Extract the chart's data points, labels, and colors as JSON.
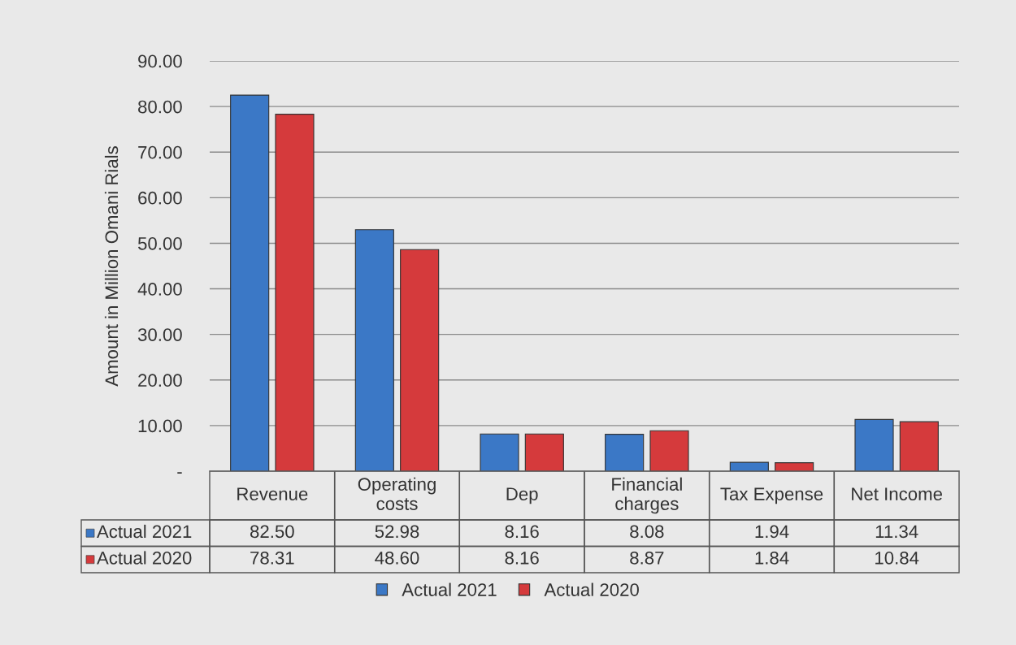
{
  "chart_data": {
    "type": "bar",
    "ylabel": "Amount in Million Omani Rials",
    "categories": [
      "Revenue",
      "Operating costs",
      "Dep",
      "Financial charges",
      "Tax Expense",
      "Net Income"
    ],
    "series": [
      {
        "name": "Actual 2021",
        "color": "#3b78c6",
        "values": [
          82.5,
          52.98,
          8.16,
          8.08,
          1.94,
          11.34
        ],
        "value_labels": [
          "82.50",
          "52.98",
          "8.16",
          "8.08",
          "1.94",
          "11.34"
        ]
      },
      {
        "name": "Actual 2020",
        "color": "#d53a3c",
        "values": [
          78.31,
          48.6,
          8.16,
          8.87,
          1.84,
          10.84
        ],
        "value_labels": [
          "78.31",
          "48.60",
          "8.16",
          "8.87",
          "1.84",
          "10.84"
        ]
      }
    ],
    "ylim": [
      0,
      90
    ],
    "yticks": [
      {
        "value": 0,
        "label": "-"
      },
      {
        "value": 10,
        "label": "10.00"
      },
      {
        "value": 20,
        "label": "20.00"
      },
      {
        "value": 30,
        "label": "30.00"
      },
      {
        "value": 40,
        "label": "40.00"
      },
      {
        "value": 50,
        "label": "50.00"
      },
      {
        "value": 60,
        "label": "60.00"
      },
      {
        "value": 70,
        "label": "70.00"
      },
      {
        "value": 80,
        "label": "80.00"
      },
      {
        "value": 90,
        "label": "90.00"
      }
    ],
    "grid": "y",
    "legend": "bottom"
  }
}
